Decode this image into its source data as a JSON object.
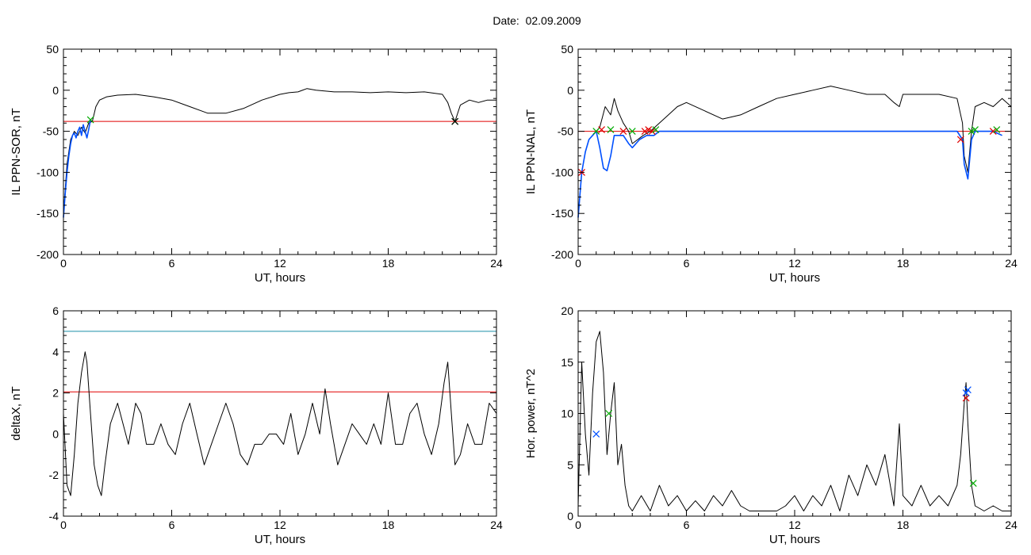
{
  "header": {
    "title": "Date:  02.09.2009"
  },
  "chart_data": [
    {
      "type": "line",
      "xlabel": "UT, hours",
      "ylabel": "IL PPN-SOR, nT",
      "xlim": [
        0,
        24
      ],
      "ylim": [
        -200,
        50
      ],
      "xticks": [
        "0",
        "6",
        "12",
        "18",
        "24"
      ],
      "yticks": [
        "-200",
        "-150",
        "-100",
        "-50",
        "0",
        "50"
      ],
      "hlines": [
        {
          "y": -38,
          "color": "#e00000"
        }
      ],
      "series": [
        {
          "color": "#000000",
          "x": [
            0,
            0.2,
            0.4,
            0.6,
            0.8,
            1.0,
            1.2,
            1.4,
            1.6,
            1.8,
            2.0,
            2.4,
            3,
            4,
            5,
            6,
            7,
            8,
            9,
            10,
            11,
            12,
            12.5,
            13,
            13.5,
            14,
            15,
            16,
            17,
            18,
            19,
            20,
            21,
            21.3,
            21.5,
            21.7,
            22,
            22.5,
            23,
            23.5,
            24
          ],
          "y": [
            -150,
            -90,
            -60,
            -50,
            -55,
            -45,
            -52,
            -40,
            -38,
            -20,
            -12,
            -8,
            -6,
            -5,
            -8,
            -12,
            -20,
            -28,
            -28,
            -22,
            -12,
            -5,
            -3,
            -2,
            2,
            0,
            -2,
            -2,
            -3,
            -2,
            -3,
            -2,
            -5,
            -15,
            -28,
            -38,
            -18,
            -12,
            -15,
            -12,
            -12
          ]
        },
        {
          "color": "#0050ff",
          "x": [
            0,
            0.1,
            0.2,
            0.3,
            0.4,
            0.5,
            0.6,
            0.7,
            0.8,
            0.9,
            1.0,
            1.1,
            1.2,
            1.3,
            1.4,
            1.5
          ],
          "y": [
            -155,
            -125,
            -100,
            -80,
            -65,
            -55,
            -52,
            -58,
            -50,
            -45,
            -55,
            -42,
            -50,
            -58,
            -48,
            -36
          ]
        }
      ],
      "markers": [
        {
          "x": 1.5,
          "y": -36,
          "color": "#00aa00"
        },
        {
          "x": 21.7,
          "y": -38,
          "color": "#00aa00"
        },
        {
          "x": 21.7,
          "y": -38,
          "color": "#000000"
        }
      ]
    },
    {
      "type": "line",
      "xlabel": "UT, hours",
      "ylabel": "IL PPN-NAL, nT",
      "xlim": [
        0,
        24
      ],
      "ylim": [
        -200,
        50
      ],
      "xticks": [
        "0",
        "6",
        "12",
        "18",
        "24"
      ],
      "yticks": [
        "-200",
        "-150",
        "-100",
        "-50",
        "0",
        "50"
      ],
      "hlines": [
        {
          "y": -50,
          "color": "#e00000"
        }
      ],
      "series": [
        {
          "color": "#000000",
          "x": [
            0,
            0.2,
            0.4,
            0.6,
            0.8,
            1.0,
            1.2,
            1.5,
            1.8,
            2.0,
            2.2,
            2.5,
            2.8,
            3.0,
            3.3,
            3.6,
            4.0,
            4.5,
            5.0,
            5.5,
            6,
            7,
            8,
            9,
            10,
            11,
            12,
            13,
            14,
            15,
            16,
            17,
            17.5,
            17.8,
            18,
            19,
            20,
            21,
            21.3,
            21.4,
            21.6,
            21.8,
            22,
            22.5,
            23,
            23.5,
            24
          ],
          "y": [
            -155,
            -100,
            -75,
            -60,
            -55,
            -50,
            -45,
            -20,
            -30,
            -10,
            -25,
            -40,
            -50,
            -65,
            -60,
            -55,
            -50,
            -40,
            -30,
            -20,
            -15,
            -25,
            -35,
            -30,
            -20,
            -10,
            -5,
            0,
            5,
            0,
            -5,
            -5,
            -15,
            -20,
            -5,
            -5,
            -5,
            -10,
            -40,
            -80,
            -100,
            -50,
            -20,
            -15,
            -20,
            -10,
            -20
          ]
        },
        {
          "color": "#0050ff",
          "x": [
            0,
            0.2,
            0.4,
            0.6,
            0.8,
            1.0,
            1.2,
            1.4,
            1.6,
            1.8,
            2.0,
            2.2,
            2.5,
            2.8,
            3.0,
            3.4,
            3.8,
            4.2,
            4.5,
            21.0,
            21.3,
            21.4,
            21.6,
            21.8,
            22,
            22.5,
            23,
            23.5
          ],
          "y": [
            -155,
            -100,
            -75,
            -60,
            -55,
            -50,
            -70,
            -95,
            -98,
            -80,
            -55,
            -55,
            -55,
            -65,
            -70,
            -60,
            -55,
            -55,
            -50,
            -50,
            -60,
            -90,
            -108,
            -60,
            -50,
            -50,
            -50,
            -55
          ]
        }
      ],
      "markers": [
        {
          "x": 0.2,
          "y": -100,
          "color": "#e00000"
        },
        {
          "x": 1.0,
          "y": -50,
          "color": "#00aa00"
        },
        {
          "x": 1.3,
          "y": -48,
          "color": "#e00000"
        },
        {
          "x": 1.8,
          "y": -48,
          "color": "#00aa00"
        },
        {
          "x": 2.5,
          "y": -50,
          "color": "#e00000"
        },
        {
          "x": 3.0,
          "y": -50,
          "color": "#00aa00"
        },
        {
          "x": 3.7,
          "y": -50,
          "color": "#e00000"
        },
        {
          "x": 3.9,
          "y": -48,
          "color": "#e00000"
        },
        {
          "x": 4.1,
          "y": -50,
          "color": "#e00000"
        },
        {
          "x": 4.3,
          "y": -48,
          "color": "#00aa00"
        },
        {
          "x": 21.2,
          "y": -60,
          "color": "#e00000"
        },
        {
          "x": 21.8,
          "y": -50,
          "color": "#00aa00"
        },
        {
          "x": 22.0,
          "y": -48,
          "color": "#00aa00"
        },
        {
          "x": 23.0,
          "y": -50,
          "color": "#e00000"
        },
        {
          "x": 23.2,
          "y": -48,
          "color": "#00aa00"
        }
      ]
    },
    {
      "type": "line",
      "xlabel": "UT, hours",
      "ylabel": "deltaX, nT",
      "xlim": [
        0,
        24
      ],
      "ylim": [
        -4,
        6
      ],
      "xticks": [
        "0",
        "6",
        "12",
        "18",
        "24"
      ],
      "yticks": [
        "-4",
        "-2",
        "0",
        "2",
        "4",
        "6"
      ],
      "hlines": [
        {
          "y": 5,
          "color": "#1a8fa8"
        },
        {
          "y": 2.05,
          "color": "#e00000"
        }
      ],
      "series": [
        {
          "color": "#000000",
          "x": [
            0,
            0.2,
            0.4,
            0.6,
            0.8,
            1.0,
            1.2,
            1.3,
            1.5,
            1.7,
            1.9,
            2.1,
            2.3,
            2.6,
            3.0,
            3.3,
            3.6,
            4.0,
            4.3,
            4.6,
            5.0,
            5.4,
            5.8,
            6.2,
            6.6,
            7.0,
            7.4,
            7.8,
            8.2,
            8.6,
            9.0,
            9.4,
            9.8,
            10.2,
            10.6,
            11.0,
            11.4,
            11.8,
            12.2,
            12.6,
            13.0,
            13.4,
            13.8,
            14.2,
            14.5,
            14.8,
            15.2,
            15.6,
            16.0,
            16.4,
            16.8,
            17.2,
            17.6,
            18.0,
            18.4,
            18.8,
            19.2,
            19.6,
            20.0,
            20.4,
            20.8,
            21.1,
            21.3,
            21.5,
            21.7,
            22.0,
            22.4,
            22.8,
            23.2,
            23.6,
            24
          ],
          "y": [
            1,
            -2.5,
            -3,
            -1,
            1.5,
            3,
            4,
            3.5,
            1,
            -1.5,
            -2.5,
            -3,
            -1.5,
            0.5,
            1.5,
            0.5,
            -0.5,
            1.5,
            1,
            -0.5,
            -0.5,
            0.5,
            -0.5,
            -1,
            0.5,
            1.5,
            0,
            -1.5,
            -0.5,
            0.5,
            1.5,
            0.5,
            -1,
            -1.5,
            -0.5,
            -0.5,
            0,
            0,
            -0.5,
            1,
            -1,
            0,
            1.5,
            0,
            2.2,
            0.5,
            -1.5,
            -0.5,
            0.5,
            0,
            -0.5,
            0.5,
            -0.5,
            2,
            -0.5,
            -0.5,
            1,
            1.5,
            0,
            -1,
            0.5,
            2.5,
            3.5,
            1,
            -1.5,
            -1,
            0.5,
            -0.5,
            -0.5,
            1.5,
            1
          ]
        }
      ],
      "markers": []
    },
    {
      "type": "line",
      "xlabel": "UT, hours",
      "ylabel": "Hor. power, nT^2",
      "xlim": [
        0,
        24
      ],
      "ylim": [
        0,
        20
      ],
      "xticks": [
        "0",
        "6",
        "12",
        "18",
        "24"
      ],
      "yticks": [
        "0",
        "5",
        "10",
        "15",
        "20"
      ],
      "hlines": [],
      "series": [
        {
          "color": "#000000",
          "x": [
            0,
            0.2,
            0.4,
            0.6,
            0.8,
            1.0,
            1.2,
            1.4,
            1.6,
            1.8,
            2.0,
            2.2,
            2.4,
            2.6,
            2.8,
            3.0,
            3.5,
            4.0,
            4.5,
            5.0,
            5.5,
            6.0,
            6.5,
            7.0,
            7.5,
            8.0,
            8.5,
            9.0,
            9.5,
            10.0,
            10.5,
            11.0,
            11.5,
            12.0,
            12.5,
            13.0,
            13.5,
            14.0,
            14.5,
            15.0,
            15.5,
            16.0,
            16.5,
            17.0,
            17.5,
            17.8,
            18.0,
            18.5,
            19.0,
            19.5,
            20.0,
            20.5,
            21.0,
            21.2,
            21.4,
            21.5,
            21.6,
            21.8,
            22.0,
            22.5,
            23.0,
            23.5,
            24
          ],
          "y": [
            1,
            15,
            8,
            4,
            12,
            17,
            18,
            14,
            6,
            10,
            13,
            5,
            7,
            3,
            1,
            0.5,
            2,
            0.5,
            3,
            1,
            2,
            0.5,
            1.5,
            0.5,
            2,
            1,
            2.5,
            1,
            0.5,
            0.5,
            0.5,
            0.5,
            1,
            2,
            0.5,
            2,
            1,
            3,
            0.5,
            4,
            2,
            5,
            3,
            6,
            1,
            9,
            2,
            1,
            3,
            1,
            2,
            1,
            3,
            6,
            11,
            13,
            9,
            3,
            1,
            0.5,
            1,
            0.5,
            0.5
          ]
        }
      ],
      "markers": [
        {
          "x": 1.0,
          "y": 8,
          "color": "#0050ff"
        },
        {
          "x": 1.7,
          "y": 10,
          "color": "#00aa00"
        },
        {
          "x": 21.5,
          "y": 11.5,
          "color": "#e00000"
        },
        {
          "x": 21.5,
          "y": 12,
          "color": "#0050ff"
        },
        {
          "x": 21.6,
          "y": 12.3,
          "color": "#0050ff"
        },
        {
          "x": 21.9,
          "y": 3.2,
          "color": "#00aa00"
        }
      ]
    }
  ]
}
